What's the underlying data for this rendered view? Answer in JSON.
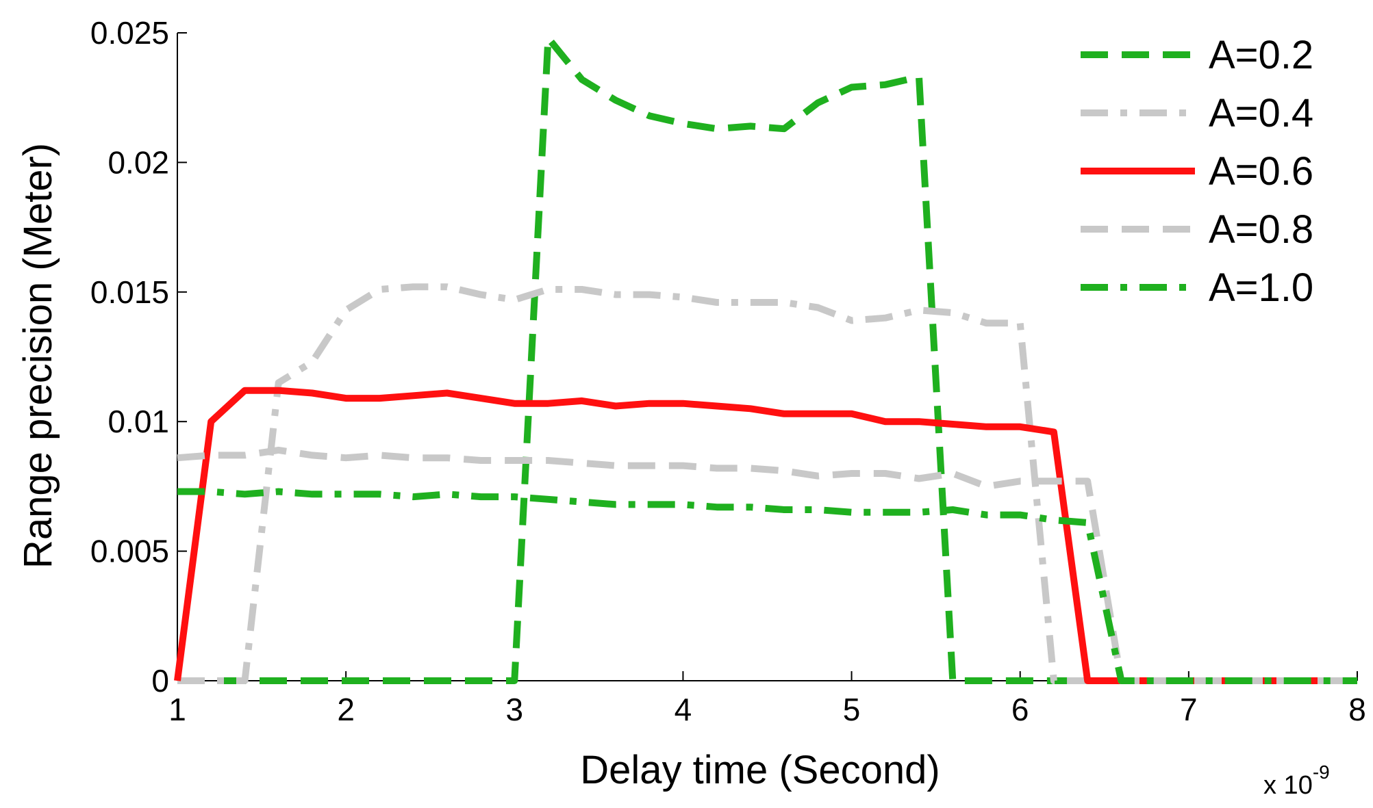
{
  "chart_data": {
    "type": "line",
    "xlabel": "Delay time (Second)",
    "ylabel": "Range precision (Meter)",
    "x_exponent_label": "x 10",
    "x_exponent_power": "-9",
    "xlim": [
      1,
      8
    ],
    "ylim": [
      0,
      0.025
    ],
    "xticks": [
      "1",
      "2",
      "3",
      "4",
      "5",
      "6",
      "7",
      "8"
    ],
    "yticks": [
      "0",
      "0.005",
      "0.01",
      "0.015",
      "0.02",
      "0.025"
    ],
    "grid": false,
    "legend_position": "top-right",
    "series": [
      {
        "name": "A=0.2",
        "color": "#1fb01f",
        "style": "dashed",
        "x": [
          1.0,
          1.2,
          1.4,
          1.6,
          1.8,
          2.0,
          2.2,
          2.4,
          2.6,
          2.8,
          3.0,
          3.2,
          3.4,
          3.6,
          3.8,
          4.0,
          4.2,
          4.4,
          4.6,
          4.8,
          5.0,
          5.2,
          5.4,
          5.6,
          5.8,
          6.0,
          6.2,
          6.4,
          6.6,
          6.8,
          7.0,
          7.2,
          7.4,
          7.6,
          7.8,
          8.0
        ],
        "y": [
          0,
          0,
          0,
          0,
          0,
          0,
          0,
          0,
          0,
          0,
          0,
          0.0248,
          0.0232,
          0.0224,
          0.0218,
          0.0215,
          0.0213,
          0.0214,
          0.0213,
          0.0223,
          0.0229,
          0.023,
          0.0233,
          0,
          0,
          0,
          0,
          0,
          0,
          0,
          0,
          0,
          0,
          0,
          0,
          0
        ]
      },
      {
        "name": "A=0.4",
        "color": "#c8c8c8",
        "style": "dashdot",
        "x": [
          1.0,
          1.2,
          1.4,
          1.6,
          1.8,
          2.0,
          2.2,
          2.4,
          2.6,
          2.8,
          3.0,
          3.2,
          3.4,
          3.6,
          3.8,
          4.0,
          4.2,
          4.4,
          4.6,
          4.8,
          5.0,
          5.2,
          5.4,
          5.6,
          5.8,
          6.0,
          6.2,
          6.4,
          6.6,
          6.8,
          7.0,
          7.2,
          7.4,
          7.6,
          7.8,
          8.0
        ],
        "y": [
          0,
          0,
          0,
          0.0115,
          0.0123,
          0.0143,
          0.0151,
          0.0152,
          0.0152,
          0.0149,
          0.0147,
          0.0151,
          0.0151,
          0.0149,
          0.0149,
          0.0148,
          0.0146,
          0.0146,
          0.0146,
          0.0144,
          0.0139,
          0.014,
          0.0143,
          0.0142,
          0.0138,
          0.0138,
          0,
          0,
          0,
          0,
          0,
          0,
          0,
          0,
          0,
          0
        ]
      },
      {
        "name": "A=0.6",
        "color": "#ff1010",
        "style": "solid",
        "x": [
          1.0,
          1.2,
          1.4,
          1.6,
          1.8,
          2.0,
          2.2,
          2.4,
          2.6,
          2.8,
          3.0,
          3.2,
          3.4,
          3.6,
          3.8,
          4.0,
          4.2,
          4.4,
          4.6,
          4.8,
          5.0,
          5.2,
          5.4,
          5.6,
          5.8,
          6.0,
          6.2,
          6.4,
          6.6,
          6.8,
          7.0,
          7.2,
          7.4,
          7.6,
          7.8,
          8.0
        ],
        "y": [
          0,
          0.01,
          0.0112,
          0.0112,
          0.0111,
          0.0109,
          0.0109,
          0.011,
          0.0111,
          0.0109,
          0.0107,
          0.0107,
          0.0108,
          0.0106,
          0.0107,
          0.0107,
          0.0106,
          0.0105,
          0.0103,
          0.0103,
          0.0103,
          0.01,
          0.01,
          0.0099,
          0.0098,
          0.0098,
          0.0096,
          0,
          0,
          0,
          0,
          0,
          0,
          0,
          0,
          0
        ]
      },
      {
        "name": "A=0.8",
        "color": "#c8c8c8",
        "style": "dashed",
        "x": [
          1.0,
          1.2,
          1.4,
          1.6,
          1.8,
          2.0,
          2.2,
          2.4,
          2.6,
          2.8,
          3.0,
          3.2,
          3.4,
          3.6,
          3.8,
          4.0,
          4.2,
          4.4,
          4.6,
          4.8,
          5.0,
          5.2,
          5.4,
          5.6,
          5.8,
          6.0,
          6.2,
          6.4,
          6.6,
          6.8,
          7.0,
          7.2,
          7.4,
          7.6,
          7.8,
          8.0
        ],
        "y": [
          0.0086,
          0.0087,
          0.0087,
          0.0089,
          0.0087,
          0.0086,
          0.0087,
          0.0086,
          0.0086,
          0.0085,
          0.0085,
          0.0085,
          0.0084,
          0.0083,
          0.0083,
          0.0083,
          0.0082,
          0.0082,
          0.0081,
          0.0079,
          0.008,
          0.008,
          0.0078,
          0.008,
          0.0075,
          0.0077,
          0.0077,
          0.0077,
          0,
          0,
          0,
          0,
          0,
          0,
          0,
          0
        ]
      },
      {
        "name": "A=1.0",
        "color": "#1fb01f",
        "style": "dashdot",
        "x": [
          1.0,
          1.2,
          1.4,
          1.6,
          1.8,
          2.0,
          2.2,
          2.4,
          2.6,
          2.8,
          3.0,
          3.2,
          3.4,
          3.6,
          3.8,
          4.0,
          4.2,
          4.4,
          4.6,
          4.8,
          5.0,
          5.2,
          5.4,
          5.6,
          5.8,
          6.0,
          6.2,
          6.4,
          6.6,
          6.8,
          7.0,
          7.2,
          7.4,
          7.6,
          7.8,
          8.0
        ],
        "y": [
          0.0073,
          0.0073,
          0.0072,
          0.0073,
          0.0072,
          0.0072,
          0.0072,
          0.0071,
          0.0072,
          0.0071,
          0.0071,
          0.007,
          0.0069,
          0.0068,
          0.0068,
          0.0068,
          0.0067,
          0.0067,
          0.0066,
          0.0066,
          0.0065,
          0.0065,
          0.0065,
          0.0066,
          0.0064,
          0.0064,
          0.0062,
          0.0061,
          0,
          0,
          0,
          0,
          0,
          0,
          0,
          0
        ]
      }
    ]
  }
}
